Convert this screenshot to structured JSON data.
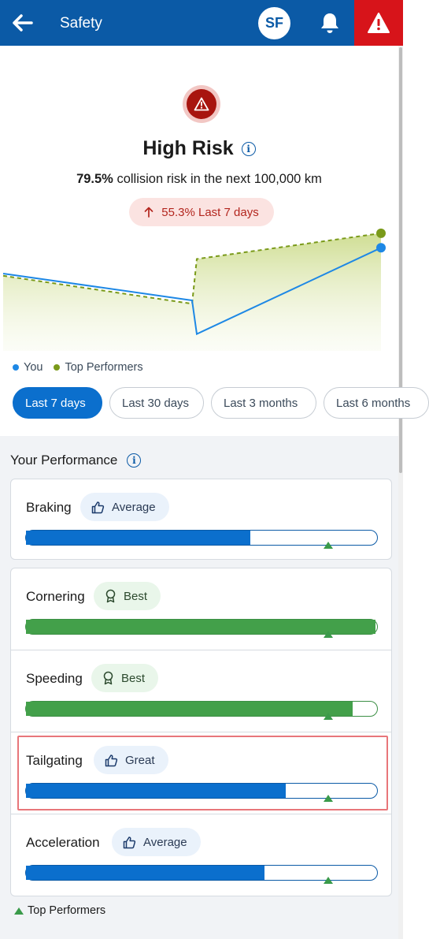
{
  "header": {
    "title": "Safety",
    "avatar_initials": "SF",
    "colors": {
      "bar": "#0b5aa6",
      "alert": "#d7141a"
    }
  },
  "risk": {
    "level": "High Risk",
    "percent": "79.5%",
    "description": "collision risk in the next 100,000 km",
    "trend": "55.3% Last 7 days",
    "colors": {
      "pill_bg": "#fbe3e1",
      "pill_text": "#b3261e",
      "icon": "#a8150f"
    }
  },
  "chart_data": {
    "type": "line",
    "title": "",
    "xlabel": "",
    "ylabel": "",
    "series": [
      {
        "name": "You",
        "color": "#1e88e5",
        "style": "solid",
        "values": [
          0.62,
          0.38,
          0.08,
          0.85
        ]
      },
      {
        "name": "Top Performers",
        "color": "#7a9a1a",
        "style": "dashed",
        "fill": true,
        "values": [
          0.6,
          0.35,
          0.75,
          0.98
        ]
      }
    ],
    "x": [
      0,
      1,
      2,
      3
    ],
    "ylim": [
      0,
      1
    ],
    "grid": false,
    "legend": "bottom-left"
  },
  "filters": [
    {
      "label": "Last 7 days",
      "active": true
    },
    {
      "label": "Last 30 days",
      "active": false
    },
    {
      "label": "Last 3 months",
      "active": false
    },
    {
      "label": "Last 6 months",
      "active": false
    }
  ],
  "performance": {
    "title": "Your Performance",
    "legend_label": "Top Performers",
    "metrics": [
      {
        "label": "Braking",
        "rating": "Average",
        "icon": "thumbs-up-icon",
        "fill": 0.64,
        "marker": 0.86,
        "color": "#0b6fcd"
      },
      {
        "label": "Cornering",
        "rating": "Best",
        "icon": "award-icon",
        "fill": 0.995,
        "marker": 0.86,
        "color": "#43a04a"
      },
      {
        "label": "Speeding",
        "rating": "Best",
        "icon": "award-icon",
        "fill": 0.93,
        "marker": 0.86,
        "color": "#43a04a"
      },
      {
        "label": "Tailgating",
        "rating": "Great",
        "icon": "thumbs-up-icon",
        "fill": 0.74,
        "marker": 0.86,
        "color": "#0b6fcd"
      },
      {
        "label": "Acceleration",
        "rating": "Average",
        "icon": "thumbs-up-icon",
        "fill": 0.68,
        "marker": 0.86,
        "color": "#0b6fcd"
      }
    ]
  }
}
